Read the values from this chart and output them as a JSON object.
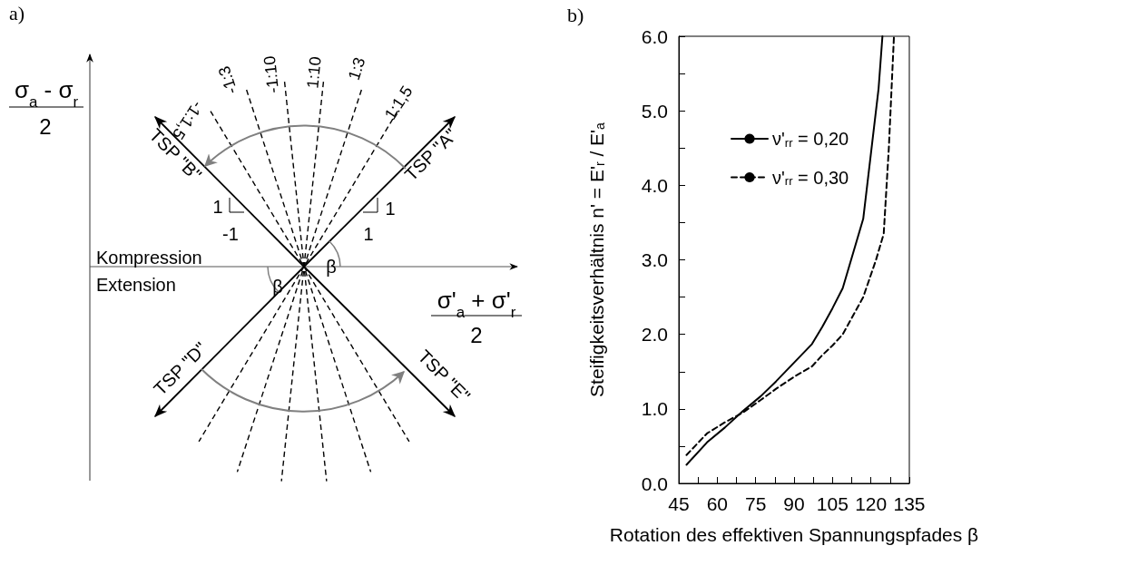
{
  "chart_data": [
    {
      "type": "other",
      "title": "a)",
      "xlabel": "σ'$_{a}$ + σ'$_{r}$",
      "ylabel": "σ$_{a}$ - σ$_{r}$",
      "annotations": [
        "2",
        "2",
        "Kompression",
        "Extension",
        "β",
        "β",
        "TSP \"A\"",
        "TSP \"B\"",
        "TSP \"D\"",
        "TSP \"E\"",
        "-1:1,5",
        "-1:3",
        "-1:10",
        "1:10",
        "1:3",
        "1:1,5",
        "1",
        "1",
        "1",
        "-1"
      ]
    },
    {
      "type": "line",
      "title": "b)",
      "xlabel": "Rotation des effektiven Spannungspfades β",
      "ylabel": "Steifigkeitsverhältnis n' = E'$_{r}$ / E'$_{a}$",
      "xlim": [
        45,
        135
      ],
      "ylim": [
        0,
        6
      ],
      "xticks": [
        45,
        {
          "value": 52.5,
          "label": null
        },
        60,
        {
          "value": 67.5,
          "label": null
        },
        75,
        {
          "value": 82.5,
          "label": null
        },
        90,
        {
          "value": 97.5,
          "label": null
        },
        105,
        {
          "value": 112.5,
          "label": null
        },
        120,
        {
          "value": 127.5,
          "label": null
        },
        135
      ],
      "yticks": [
        {
          "value": 0,
          "label": "0.0"
        },
        {
          "value": 0.5,
          "label": null
        },
        {
          "value": 1,
          "label": "1.0"
        },
        {
          "value": 1.5,
          "label": null
        },
        {
          "value": 2,
          "label": "2.0"
        },
        {
          "value": 2.5,
          "label": null
        },
        {
          "value": 3,
          "label": "3.0"
        },
        {
          "value": 3.5,
          "label": null
        },
        {
          "value": 4,
          "label": "4.0"
        },
        {
          "value": 4.5,
          "label": null
        },
        {
          "value": 5,
          "label": "5.0"
        },
        {
          "value": 5.5,
          "label": null
        },
        {
          "value": 6,
          "label": "6.0"
        }
      ],
      "grid": false,
      "legend": "top left",
      "marker": "none",
      "series": [
        {
          "name": "ν'$_{rr}$ = 0,20",
          "color": "#000000",
          "line_style": "solid",
          "x": [
            48,
            56,
            63,
            70,
            77,
            83,
            90,
            97,
            101,
            105,
            109,
            117,
            123,
            124.5
          ],
          "values": [
            0.25,
            0.55,
            0.75,
            0.97,
            1.17,
            1.37,
            1.62,
            1.87,
            2.1,
            2.35,
            2.62,
            3.55,
            5.3,
            6.0
          ]
        },
        {
          "name": "ν'$_{rr}$ = 0,30",
          "color": "#000000",
          "line_style": "dashed",
          "x": [
            48,
            56,
            63,
            70,
            77,
            83,
            90,
            97,
            101,
            105,
            109,
            117,
            122,
            125,
            127,
            129
          ],
          "values": [
            0.38,
            0.67,
            0.82,
            0.95,
            1.12,
            1.27,
            1.43,
            1.57,
            1.72,
            1.85,
            2.0,
            2.5,
            3.0,
            3.35,
            4.5,
            6.0
          ]
        }
      ]
    }
  ]
}
